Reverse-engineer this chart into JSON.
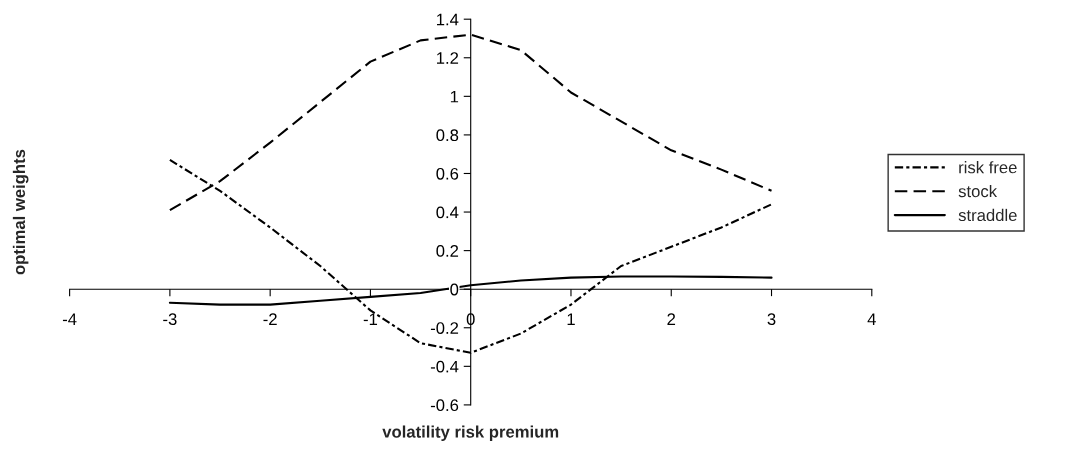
{
  "chart_data": {
    "type": "line",
    "xlabel": "volatility risk premium",
    "ylabel": "optimal weights",
    "x": [
      -3,
      -2.5,
      -2,
      -1.5,
      -1,
      -0.5,
      0,
      0.5,
      1,
      1.5,
      2,
      2.5,
      3
    ],
    "xlim": [
      -4,
      4
    ],
    "xticks": [
      -4,
      -3,
      -2,
      -1,
      0,
      1,
      2,
      3,
      4
    ],
    "ylim": [
      -0.6,
      1.4
    ],
    "yticks": [
      -0.6,
      -0.4,
      -0.2,
      0,
      0.2,
      0.4,
      0.6,
      0.8,
      1,
      1.2,
      1.4
    ],
    "grid": false,
    "legend": "right",
    "marker": "none",
    "series": [
      {
        "name": "risk free",
        "color": "#000000",
        "line_style": "dashdot",
        "values": [
          0.67,
          0.51,
          0.32,
          0.12,
          -0.11,
          -0.28,
          -0.33,
          -0.23,
          -0.08,
          0.12,
          0.22,
          0.32,
          0.44
        ]
      },
      {
        "name": "stock",
        "color": "#000000",
        "line_style": "dashed",
        "values": [
          0.41,
          0.56,
          0.76,
          0.97,
          1.18,
          1.29,
          1.32,
          1.24,
          1.02,
          0.87,
          0.72,
          0.62,
          0.51
        ]
      },
      {
        "name": "straddle",
        "color": "#000000",
        "line_style": "solid",
        "values": [
          -0.07,
          -0.08,
          -0.08,
          -0.06,
          -0.04,
          -0.02,
          0.02,
          0.045,
          0.06,
          0.066,
          0.066,
          0.064,
          0.06
        ]
      }
    ]
  }
}
